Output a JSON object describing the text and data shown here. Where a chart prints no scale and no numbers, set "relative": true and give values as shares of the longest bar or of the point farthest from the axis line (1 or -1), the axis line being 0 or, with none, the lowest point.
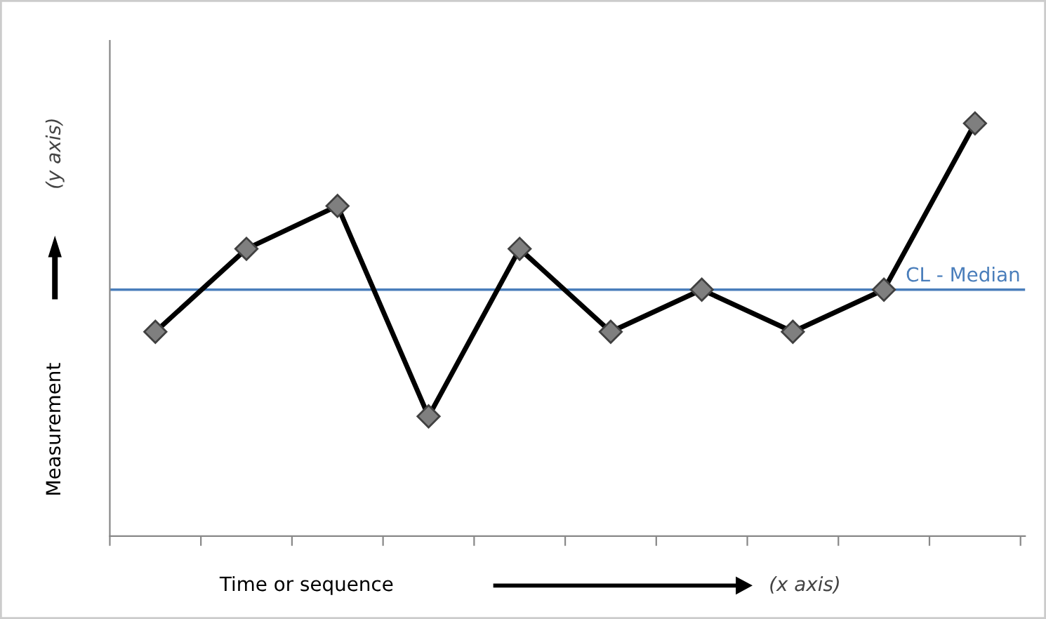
{
  "chart_data": {
    "type": "line",
    "relative": true,
    "categories": [
      null,
      null,
      null,
      null,
      null,
      null,
      null,
      null,
      null,
      null
    ],
    "series": [
      {
        "color": "#000000",
        "values": [
          0.495,
          0.696,
          0.8,
          0.29,
          0.696,
          0.495,
          0.597,
          0.495,
          0.597,
          1
        ]
      }
    ],
    "marker": "diamond",
    "line_style": "solid",
    "grid": false,
    "legend": false,
    "xlabel": "Time or sequence",
    "ylabel": "Measurement",
    "annotations": [
      "(x axis)",
      "(y axis)"
    ],
    "ref_lines": [
      {
        "axis": "y",
        "value": 0.597,
        "label": "CL - Median",
        "color": "#4a7ebb"
      }
    ]
  }
}
